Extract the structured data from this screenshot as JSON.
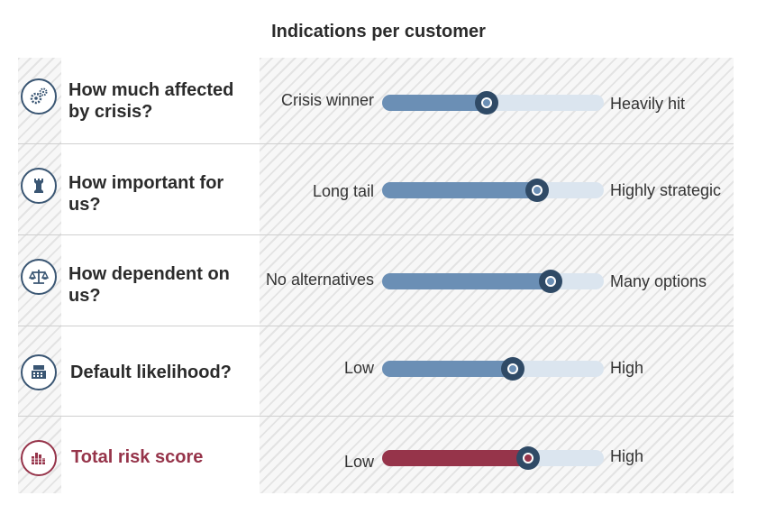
{
  "title": "Indications per customer",
  "rows": [
    {
      "icon": "gears-icon",
      "label": "How much affected by crisis?",
      "left": "Crisis winner",
      "right": "Heavily hit",
      "value": 0.47
    },
    {
      "icon": "chess-rook-icon",
      "label": "How important for us?",
      "left": "Long tail",
      "right": "Highly strategic",
      "value": 0.7
    },
    {
      "icon": "balance-scale-icon",
      "label": "How dependent on us?",
      "left": "No alternatives",
      "right": "Many options",
      "value": 0.76
    },
    {
      "icon": "cash-register-icon",
      "label": "Default likelihood?",
      "left": "Low",
      "right": "High",
      "value": 0.59
    },
    {
      "icon": "bar-chart-icon",
      "label": "Total risk score",
      "left": "Low",
      "right": "High",
      "value": 0.66
    }
  ],
  "colors": {
    "accent": "#6b8fb5",
    "track": "#dbe5ef",
    "knob": "#2f4a66",
    "total": "#96344a"
  }
}
